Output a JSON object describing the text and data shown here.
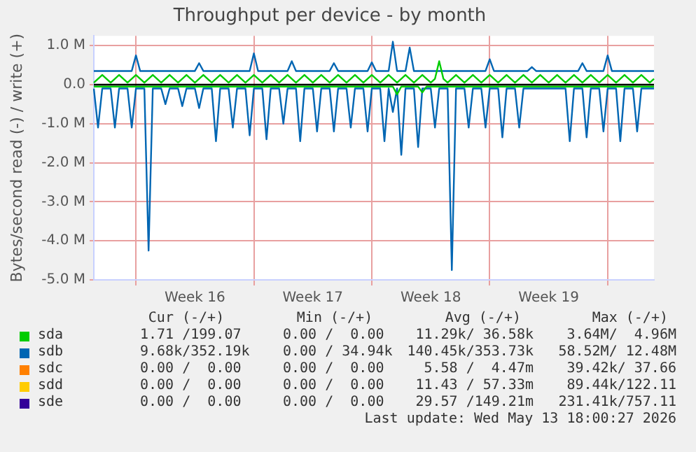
{
  "chart_data": {
    "type": "line",
    "title": "Throughput per device - by month",
    "ylabel": "Bytes/second read (-) / write (+)",
    "categories": [
      null,
      null,
      null,
      null,
      null,
      null,
      null,
      null,
      null,
      null,
      null,
      null,
      null,
      null,
      null,
      null,
      null,
      null,
      null,
      null,
      null,
      null,
      null,
      null,
      "Week 16",
      null,
      null,
      null,
      null,
      null,
      null,
      null,
      null,
      null,
      null,
      null,
      null,
      null,
      null,
      null,
      null,
      null,
      null,
      null,
      null,
      null,
      null,
      null,
      null,
      null,
      null,
      null,
      "Week 17",
      null,
      null,
      null,
      null,
      null,
      null,
      null,
      null,
      null,
      null,
      null,
      null,
      null,
      null,
      null,
      null,
      null,
      null,
      null,
      null,
      null,
      null,
      null,
      null,
      null,
      null,
      null,
      "Week 18",
      null,
      null,
      null,
      null,
      null,
      null,
      null,
      null,
      null,
      null,
      null,
      null,
      null,
      null,
      null,
      null,
      null,
      null,
      null,
      null,
      null,
      null,
      null,
      null,
      null,
      null,
      null,
      "Week 19",
      null,
      null,
      null,
      null,
      null,
      null,
      null,
      null,
      null,
      null,
      null,
      null,
      null,
      null,
      null,
      null,
      null,
      null,
      null,
      null,
      null,
      null,
      null,
      null,
      null
    ],
    "ylim": [
      -5,
      1.25
    ],
    "yticks": [
      {
        "value": -5,
        "label": "-5.0 M"
      },
      {
        "value": -4,
        "label": "-4.0 M"
      },
      {
        "value": -3,
        "label": "-3.0 M"
      },
      {
        "value": -2,
        "label": "-2.0 M"
      },
      {
        "value": -1,
        "label": "-1.0 M"
      },
      {
        "value": 0,
        "label": "0.0"
      },
      {
        "value": 1,
        "label": "1.0 M"
      }
    ],
    "grid": true,
    "legend": "bottom",
    "marker": "none",
    "line_style": "solid",
    "ref_lines": [
      {
        "axis": "y",
        "value": 0,
        "color": "#000000"
      }
    ],
    "series": [
      {
        "name": "sda",
        "color": "#00cc00",
        "values": [
          0.05,
          0.15,
          0.25,
          0.15,
          0.05,
          0.15,
          0.25,
          0.15,
          0.05,
          0.15,
          0.25,
          0.15,
          0.05,
          0.15,
          0.25,
          0.15,
          0.05,
          0.15,
          0.25,
          0.15,
          0.05,
          0.15,
          0.25,
          0.15,
          0.05,
          0.15,
          0.25,
          0.15,
          0.05,
          0.15,
          0.25,
          0.15,
          0.05,
          0.15,
          0.25,
          0.15,
          0.05,
          0.15,
          0.25,
          0.15,
          0.05,
          0.15,
          0.25,
          0.15,
          0.05,
          0.15,
          0.25,
          0.15,
          0.05,
          0.15,
          0.25,
          0.15,
          0.05,
          0.15,
          0.25,
          0.15,
          0.05,
          0.15,
          0.25,
          0.15,
          0.05,
          0.15,
          0.25,
          0.15,
          0.05,
          0.15,
          0.25,
          0.15,
          0.05,
          0.15,
          0.25,
          0.15,
          0.05,
          0.15,
          0.25,
          0.15,
          0.05,
          0.15,
          0.25,
          0.15,
          0.05,
          0.15,
          0.6,
          0.15,
          0.05,
          0.15,
          0.25,
          0.15,
          0.05,
          0.15,
          0.25,
          0.15,
          0.05,
          0.15,
          0.25,
          0.15,
          0.05,
          0.15,
          0.25,
          0.15,
          0.05,
          0.15,
          0.25,
          0.15,
          0.05,
          0.15,
          0.25,
          0.15,
          0.05,
          0.15,
          0.25,
          0.15,
          0.05,
          0.15,
          0.25,
          0.15,
          0.05,
          0.15,
          0.25,
          0.15,
          0.05,
          0.15,
          0.25,
          0.15,
          0.05,
          0.15,
          0.25,
          0.15,
          0.05,
          0.15,
          0.25,
          0.15,
          0.05,
          0.15
        ]
      },
      {
        "color": "#00cc00",
        "values": [
          -0.05,
          -0.05,
          -0.05,
          -0.05,
          -0.05,
          -0.05,
          -0.05,
          -0.05,
          -0.05,
          -0.05,
          -0.05,
          -0.05,
          -0.05,
          -0.05,
          -0.05,
          -0.05,
          -0.05,
          -0.05,
          -0.05,
          -0.05,
          -0.05,
          -0.05,
          -0.05,
          -0.05,
          -0.05,
          -0.05,
          -0.05,
          -0.05,
          -0.05,
          -0.05,
          -0.05,
          -0.05,
          -0.05,
          -0.05,
          -0.05,
          -0.05,
          -0.05,
          -0.05,
          -0.05,
          -0.05,
          -0.05,
          -0.05,
          -0.05,
          -0.05,
          -0.05,
          -0.05,
          -0.05,
          -0.05,
          -0.05,
          -0.05,
          -0.05,
          -0.05,
          -0.05,
          -0.05,
          -0.05,
          -0.05,
          -0.05,
          -0.05,
          -0.05,
          -0.05,
          -0.05,
          -0.05,
          -0.05,
          -0.05,
          -0.05,
          -0.05,
          -0.05,
          -0.05,
          -0.05,
          -0.05,
          -0.05,
          -0.05,
          -0.25,
          -0.05,
          -0.05,
          -0.05,
          -0.05,
          -0.05,
          -0.2,
          -0.05,
          -0.05,
          -0.05,
          -0.05,
          -0.05,
          -0.05,
          -0.05,
          -0.05,
          -0.05,
          -0.05,
          -0.05,
          -0.05,
          -0.05,
          -0.05,
          -0.05,
          -0.05,
          -0.05,
          -0.05,
          -0.05,
          -0.05,
          -0.05,
          -0.05,
          -0.05,
          -0.05,
          -0.05,
          -0.05,
          -0.05,
          -0.05,
          -0.05,
          -0.05,
          -0.05,
          -0.05,
          -0.05,
          -0.05,
          -0.05,
          -0.05,
          -0.05,
          -0.05,
          -0.05,
          -0.05,
          -0.05,
          -0.05,
          -0.05,
          -0.05,
          -0.05,
          -0.05,
          -0.05,
          -0.05,
          -0.05,
          -0.05,
          -0.05,
          -0.05,
          -0.05,
          -0.05,
          -0.05
        ]
      },
      {
        "name": "sdb",
        "color": "#0066b3",
        "values": [
          0.35,
          0.35,
          0.35,
          0.35,
          0.35,
          0.35,
          0.35,
          0.35,
          0.35,
          0.35,
          0.75,
          0.35,
          0.35,
          0.35,
          0.35,
          0.35,
          0.35,
          0.35,
          0.35,
          0.35,
          0.35,
          0.35,
          0.35,
          0.35,
          0.35,
          0.55,
          0.35,
          0.35,
          0.35,
          0.35,
          0.35,
          0.35,
          0.35,
          0.35,
          0.35,
          0.35,
          0.35,
          0.35,
          0.8,
          0.35,
          0.35,
          0.35,
          0.35,
          0.35,
          0.35,
          0.35,
          0.35,
          0.6,
          0.35,
          0.35,
          0.35,
          0.35,
          0.35,
          0.35,
          0.35,
          0.35,
          0.35,
          0.55,
          0.35,
          0.35,
          0.35,
          0.35,
          0.35,
          0.35,
          0.35,
          0.35,
          0.57,
          0.35,
          0.35,
          0.35,
          0.35,
          1.1,
          0.35,
          0.35,
          0.35,
          0.95,
          0.35,
          0.35,
          0.35,
          0.35,
          0.35,
          0.35,
          0.35,
          0.35,
          0.35,
          0.35,
          0.35,
          0.35,
          0.35,
          0.35,
          0.35,
          0.35,
          0.35,
          0.35,
          0.65,
          0.35,
          0.35,
          0.35,
          0.35,
          0.35,
          0.35,
          0.35,
          0.35,
          0.35,
          0.45,
          0.35,
          0.35,
          0.35,
          0.35,
          0.35,
          0.35,
          0.35,
          0.35,
          0.35,
          0.35,
          0.35,
          0.55,
          0.35,
          0.35,
          0.35,
          0.35,
          0.35,
          0.75,
          0.35,
          0.35,
          0.35,
          0.35,
          0.35,
          0.35,
          0.35,
          0.35,
          0.35,
          0.35,
          0.35
        ]
      },
      {
        "color": "#0066b3",
        "values": [
          -0.1,
          -1.1,
          -0.1,
          -0.1,
          -0.1,
          -1.1,
          -0.1,
          -0.1,
          -0.1,
          -1.1,
          -0.1,
          -0.1,
          -0.1,
          -4.25,
          -0.1,
          -0.1,
          -0.1,
          -0.5,
          -0.1,
          -0.1,
          -0.1,
          -0.55,
          -0.1,
          -0.1,
          -0.1,
          -0.6,
          -0.1,
          -0.1,
          -0.1,
          -1.45,
          -0.1,
          -0.1,
          -0.1,
          -1.1,
          -0.1,
          -0.1,
          -0.1,
          -1.3,
          -0.1,
          -0.1,
          -0.1,
          -1.4,
          -0.1,
          -0.1,
          -0.1,
          -1.0,
          -0.1,
          -0.1,
          -0.1,
          -1.45,
          -0.1,
          -0.1,
          -0.1,
          -1.2,
          -0.1,
          -0.1,
          -0.1,
          -1.2,
          -0.1,
          -0.1,
          -0.1,
          -1.1,
          -0.1,
          -0.1,
          -0.1,
          -1.2,
          -0.1,
          -0.1,
          -0.1,
          -1.45,
          -0.1,
          -0.7,
          -0.1,
          -1.8,
          -0.1,
          -0.1,
          -0.1,
          -1.6,
          -0.1,
          -0.1,
          -0.1,
          -1.1,
          -0.1,
          -0.1,
          -0.1,
          -4.75,
          -0.1,
          -0.1,
          -0.1,
          -1.1,
          -0.1,
          -0.1,
          -0.1,
          -1.1,
          -0.1,
          -0.1,
          -0.1,
          -1.35,
          -0.1,
          -0.1,
          -0.1,
          -1.1,
          -0.1,
          -0.1,
          -0.1,
          -0.1,
          -0.1,
          -0.1,
          -0.1,
          -0.1,
          -0.1,
          -0.1,
          -0.1,
          -1.45,
          -0.1,
          -0.1,
          -0.1,
          -1.35,
          -0.1,
          -0.1,
          -0.1,
          -1.2,
          -0.1,
          -0.1,
          -0.1,
          -1.45,
          -0.1,
          -0.1,
          -0.1,
          -1.2,
          -0.1,
          -0.1,
          -0.1,
          -0.1
        ]
      },
      {
        "name": "sdc",
        "color": "#ff8000",
        "values": [
          null,
          null,
          null,
          null,
          null,
          null,
          null,
          null,
          null,
          null,
          null,
          null,
          null,
          null,
          null,
          null,
          null,
          null,
          null,
          null,
          null,
          null,
          null,
          null,
          null,
          null,
          null,
          null,
          null,
          null,
          null,
          null,
          null,
          null,
          null,
          null,
          null,
          null,
          null,
          null,
          null,
          null,
          null,
          null,
          null,
          null,
          null,
          null,
          null,
          null,
          null,
          null,
          null,
          null,
          null,
          null,
          null,
          null,
          null,
          null,
          null,
          null,
          null,
          null,
          null,
          null,
          null,
          null,
          null,
          null,
          null,
          null,
          null,
          null,
          null,
          null,
          null,
          null,
          null,
          null,
          null,
          null,
          null,
          null,
          null,
          null,
          null,
          null,
          null,
          null,
          null,
          null,
          null,
          null,
          null,
          null,
          null,
          null,
          null,
          null,
          null,
          null,
          null,
          null,
          null,
          null,
          null,
          null,
          null,
          null,
          null,
          null,
          null,
          null,
          null,
          null,
          null,
          null,
          null,
          null,
          null,
          null,
          null,
          null,
          null,
          null,
          null,
          null,
          null,
          null,
          null,
          null,
          null,
          null
        ]
      },
      {
        "name": "sdd",
        "color": "#ffcc00",
        "values": [
          null,
          null,
          null,
          null,
          null,
          null,
          null,
          null,
          null,
          null,
          null,
          null,
          null,
          null,
          null,
          null,
          null,
          null,
          null,
          null,
          null,
          null,
          null,
          null,
          null,
          null,
          null,
          null,
          null,
          null,
          null,
          null,
          null,
          null,
          null,
          null,
          null,
          null,
          null,
          null,
          null,
          null,
          null,
          null,
          null,
          null,
          null,
          null,
          null,
          null,
          null,
          null,
          null,
          null,
          null,
          null,
          null,
          null,
          null,
          null,
          null,
          null,
          null,
          null,
          null,
          null,
          null,
          null,
          null,
          null,
          null,
          null,
          null,
          null,
          null,
          null,
          null,
          null,
          null,
          null,
          null,
          null,
          null,
          null,
          null,
          null,
          null,
          null,
          null,
          null,
          null,
          null,
          null,
          null,
          null,
          null,
          null,
          null,
          null,
          null,
          null,
          null,
          null,
          null,
          null,
          null,
          null,
          null,
          null,
          null,
          null,
          null,
          null,
          null,
          null,
          null,
          null,
          null,
          null,
          null,
          null,
          null,
          null,
          null,
          null,
          null,
          null,
          null,
          null,
          null,
          null,
          null,
          null,
          null
        ]
      },
      {
        "name": "sde",
        "color": "#330099",
        "values": [
          null,
          null,
          null,
          null,
          null,
          null,
          null,
          null,
          null,
          null,
          null,
          null,
          null,
          null,
          null,
          null,
          null,
          null,
          null,
          null,
          null,
          null,
          null,
          null,
          null,
          null,
          null,
          null,
          null,
          null,
          null,
          null,
          null,
          null,
          null,
          null,
          null,
          null,
          null,
          null,
          null,
          null,
          null,
          null,
          null,
          null,
          null,
          null,
          null,
          null,
          null,
          null,
          null,
          null,
          null,
          null,
          null,
          null,
          null,
          null,
          null,
          null,
          null,
          null,
          null,
          null,
          null,
          null,
          null,
          null,
          null,
          null,
          null,
          null,
          null,
          null,
          null,
          null,
          null,
          null,
          null,
          null,
          null,
          null,
          null,
          null,
          null,
          null,
          null,
          null,
          null,
          null,
          null,
          null,
          null,
          null,
          null,
          null,
          null,
          null,
          null,
          null,
          null,
          null,
          null,
          null,
          null,
          null,
          null,
          null,
          null,
          null,
          null,
          null,
          null,
          null,
          null,
          null,
          null,
          null,
          null,
          null,
          null,
          null,
          null,
          null,
          null,
          null,
          null,
          null,
          null,
          null,
          null,
          null
        ]
      }
    ],
    "annotations": [
      "Cur (-/+)",
      "Min (-/+)",
      "Avg (-/+)",
      "Max (-/+)",
      "1.71 /199.07",
      "0.00 /  0.00",
      "11.29k/ 36.58k",
      "3.64M/  4.96M",
      "9.68k/352.19k",
      "0.00 / 34.94k",
      "140.45k/353.73k",
      "58.52M/ 12.48M",
      "0.00 /  0.00",
      "0.00 /  0.00",
      "5.58 /  4.47m",
      "39.42k/ 37.66",
      "0.00 /  0.00",
      "0.00 /  0.00",
      "11.43 / 57.33m",
      "89.44k/122.11",
      "0.00 /  0.00",
      "0.00 /  0.00",
      "29.57 /149.21m",
      "231.41k/757.11",
      "Last update: Wed May 13 18:00:27 2026"
    ]
  }
}
